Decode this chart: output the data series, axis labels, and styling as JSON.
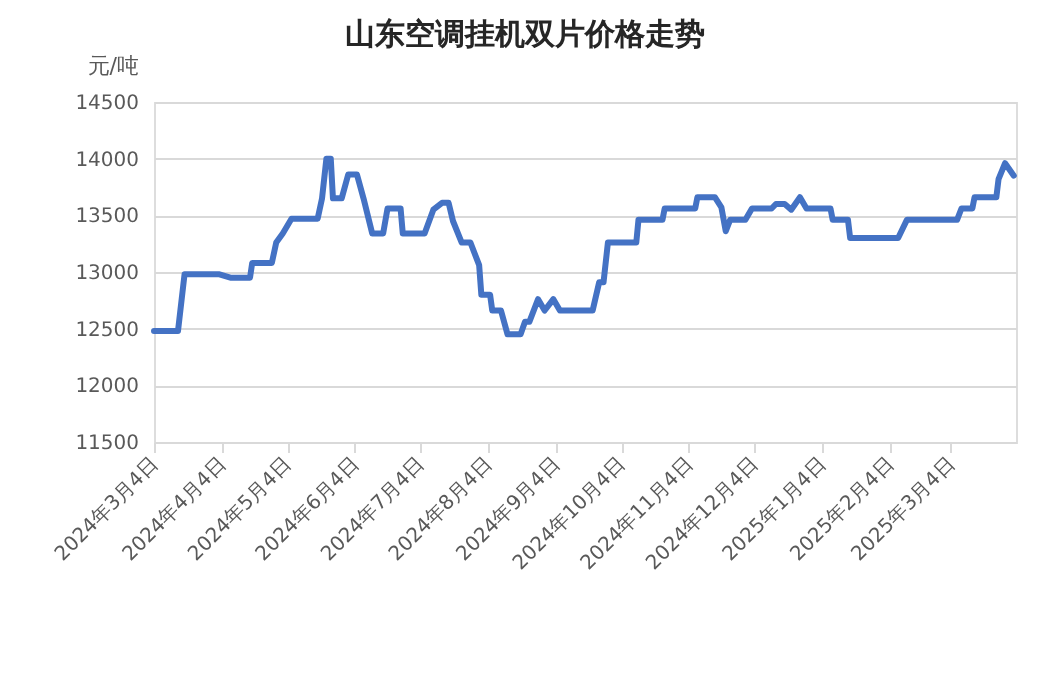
{
  "chart_data": {
    "type": "line",
    "title": "山东空调挂机双片价格走势",
    "ylabel": "元/吨",
    "x": [
      "2024-03-04",
      "2024-03-15",
      "2024-03-18",
      "2024-04-03",
      "2024-04-08",
      "2024-04-17",
      "2024-04-18",
      "2024-04-27",
      "2024-04-29",
      "2024-05-02",
      "2024-05-06",
      "2024-05-18",
      "2024-05-20",
      "2024-05-22",
      "2024-05-24",
      "2024-05-25",
      "2024-05-29",
      "2024-06-01",
      "2024-06-05",
      "2024-06-08",
      "2024-06-12",
      "2024-06-17",
      "2024-06-19",
      "2024-06-25",
      "2024-06-26",
      "2024-07-06",
      "2024-07-10",
      "2024-07-14",
      "2024-07-17",
      "2024-07-19",
      "2024-07-23",
      "2024-07-27",
      "2024-07-31",
      "2024-08-01",
      "2024-08-05",
      "2024-08-06",
      "2024-08-10",
      "2024-08-13",
      "2024-08-19",
      "2024-08-21",
      "2024-08-23",
      "2024-08-27",
      "2024-08-30",
      "2024-09-03",
      "2024-09-06",
      "2024-09-21",
      "2024-09-24",
      "2024-09-26",
      "2024-09-28",
      "2024-10-11",
      "2024-10-12",
      "2024-10-23",
      "2024-10-24",
      "2024-11-07",
      "2024-11-08",
      "2024-11-16",
      "2024-11-19",
      "2024-11-21",
      "2024-11-23",
      "2024-11-30",
      "2024-12-03",
      "2024-12-12",
      "2024-12-14",
      "2024-12-18",
      "2024-12-21",
      "2024-12-25",
      "2024-12-28",
      "2025-01-08",
      "2025-01-09",
      "2025-01-16",
      "2025-01-17",
      "2025-02-08",
      "2025-02-12",
      "2025-03-07",
      "2025-03-09",
      "2025-03-14",
      "2025-03-15",
      "2025-03-25",
      "2025-03-26",
      "2025-03-29",
      "2025-04-02"
    ],
    "series": [
      {
        "color": "#4472c4",
        "values": [
          12480,
          12480,
          12980,
          12980,
          12950,
          12950,
          13080,
          13080,
          13260,
          13340,
          13470,
          13470,
          13650,
          14000,
          14000,
          13650,
          13650,
          13860,
          13860,
          13650,
          13340,
          13340,
          13560,
          13560,
          13340,
          13340,
          13550,
          13610,
          13610,
          13450,
          13260,
          13260,
          13060,
          12800,
          12800,
          12660,
          12660,
          12450,
          12450,
          12560,
          12560,
          12760,
          12660,
          12760,
          12660,
          12660,
          12910,
          12910,
          13260,
          13260,
          13460,
          13460,
          13560,
          13560,
          13660,
          13660,
          13570,
          13360,
          13460,
          13460,
          13560,
          13560,
          13600,
          13600,
          13550,
          13660,
          13560,
          13560,
          13460,
          13460,
          13300,
          13300,
          13460,
          13460,
          13560,
          13560,
          13660,
          13660,
          13820,
          13960,
          13850
        ]
      }
    ],
    "xlim": [
      "2024-03-04",
      "2025-04-03"
    ],
    "xticks": [
      {
        "value": "2024-03-04",
        "label": "2024年3月4日"
      },
      {
        "value": "2024-04-04",
        "label": "2024年4月4日"
      },
      {
        "value": "2024-05-04",
        "label": "2024年5月4日"
      },
      {
        "value": "2024-06-04",
        "label": "2024年6月4日"
      },
      {
        "value": "2024-07-04",
        "label": "2024年7月4日"
      },
      {
        "value": "2024-08-04",
        "label": "2024年8月4日"
      },
      {
        "value": "2024-09-04",
        "label": "2024年9月4日"
      },
      {
        "value": "2024-10-04",
        "label": "2024年10月4日"
      },
      {
        "value": "2024-11-04",
        "label": "2024年11月4日"
      },
      {
        "value": "2024-12-04",
        "label": "2024年12月4日"
      },
      {
        "value": "2025-01-04",
        "label": "2025年1月4日"
      },
      {
        "value": "2025-02-04",
        "label": "2025年2月4日"
      },
      {
        "value": "2025-03-04",
        "label": "2025年3月4日"
      }
    ],
    "ylim": [
      11500,
      14500
    ],
    "yticks": [
      11500,
      12000,
      12500,
      13000,
      13500,
      14000,
      14500
    ],
    "grid": "y",
    "marker": "none",
    "line_style": "solid"
  }
}
